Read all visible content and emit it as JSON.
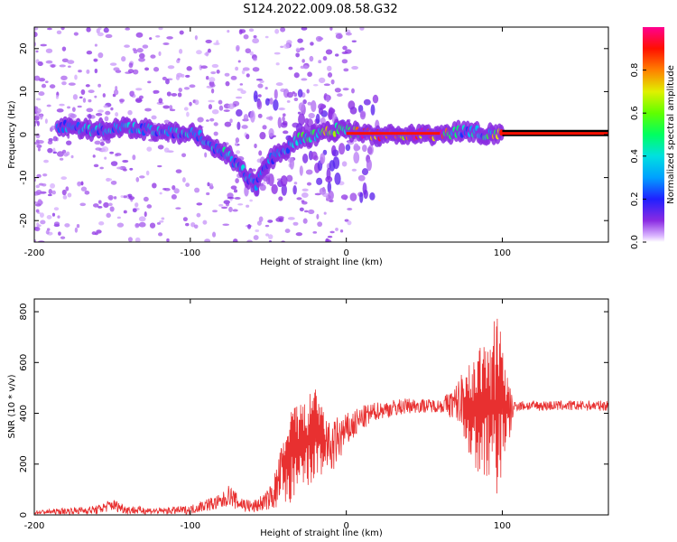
{
  "figure": {
    "title": "S124.2022.009.08.58.G32"
  },
  "chart_data": [
    {
      "type": "heatmap",
      "title": "",
      "xlabel": "Height of straight line (km)",
      "ylabel": "Frequency (Hz)",
      "xlim": [
        -200,
        168
      ],
      "ylim": [
        -25,
        25
      ],
      "x_ticks": [
        -200,
        -100,
        0,
        100
      ],
      "y_ticks": [
        -20,
        -10,
        0,
        10,
        20
      ],
      "colorbar": {
        "label": "Normalized spectral amplitude",
        "range": [
          0,
          1
        ],
        "ticks": [
          0.0,
          0.2,
          0.4,
          0.6,
          0.8
        ],
        "colormap": [
          "#ffffff",
          "#9b30ff",
          "#3030ff",
          "#00c8ff",
          "#00ff80",
          "#80ff00",
          "#ffd000",
          "#ff3000",
          "#ff0080"
        ]
      },
      "signal_track": {
        "x": [
          -180,
          -160,
          -140,
          -120,
          -105,
          -95,
          -85,
          -75,
          -65,
          -58,
          -50,
          -40,
          -30,
          -20,
          -10,
          -5,
          0,
          5,
          20,
          60,
          70,
          80,
          90,
          100,
          168
        ],
        "freq": [
          2,
          1,
          1.5,
          1,
          0.5,
          0,
          -3,
          -5,
          -9,
          -12,
          -6,
          -4,
          -1,
          0,
          0.5,
          1.5,
          1.5,
          0.5,
          0,
          0,
          0.5,
          1,
          0,
          0,
          0
        ],
        "amplitude": [
          0.3,
          0.3,
          0.3,
          0.3,
          0.3,
          0.35,
          0.35,
          0.35,
          0.3,
          0.25,
          0.25,
          0.3,
          0.4,
          0.5,
          0.55,
          0.5,
          0.45,
          0.75,
          0.85,
          0.9,
          0.35,
          0.35,
          0.35,
          0.85,
          0.9
        ]
      }
    },
    {
      "type": "line",
      "title": "",
      "xlabel": "Height of straight line (km)",
      "ylabel": "SNR (10 * v/v)",
      "xlim": [
        -200,
        168
      ],
      "ylim": [
        0,
        850
      ],
      "x_ticks": [
        -200,
        -100,
        0,
        100
      ],
      "y_ticks": [
        0,
        200,
        400,
        600,
        800
      ],
      "series": [
        {
          "color": "#e83030",
          "x": [
            -200,
            -180,
            -160,
            -150,
            -140,
            -120,
            -100,
            -90,
            -80,
            -75,
            -70,
            -60,
            -50,
            -45,
            -40,
            -35,
            -30,
            -25,
            -20,
            -15,
            -10,
            -5,
            0,
            10,
            20,
            30,
            40,
            60,
            70,
            75,
            80,
            85,
            90,
            95,
            98,
            100,
            105,
            108,
            110,
            130,
            150,
            168
          ],
          "y": [
            10,
            15,
            20,
            40,
            20,
            15,
            20,
            40,
            50,
            80,
            50,
            30,
            60,
            100,
            200,
            330,
            280,
            300,
            380,
            320,
            250,
            300,
            330,
            380,
            410,
            420,
            430,
            430,
            440,
            460,
            440,
            470,
            450,
            440,
            450,
            420,
            400,
            430,
            430,
            430,
            430,
            430
          ],
          "envelope_low": [
            5,
            5,
            5,
            10,
            5,
            5,
            5,
            10,
            15,
            20,
            10,
            10,
            20,
            30,
            40,
            40,
            60,
            80,
            120,
            150,
            180,
            220,
            280,
            340,
            380,
            390,
            400,
            400,
            380,
            300,
            200,
            150,
            120,
            80,
            60,
            200,
            300,
            410,
            410,
            410,
            410,
            410
          ],
          "envelope_high": [
            20,
            30,
            40,
            60,
            40,
            30,
            40,
            60,
            80,
            100,
            80,
            60,
            100,
            200,
            300,
            420,
            440,
            470,
            500,
            420,
            380,
            420,
            420,
            440,
            450,
            460,
            460,
            450,
            520,
            560,
            600,
            650,
            700,
            780,
            850,
            700,
            500,
            450,
            450,
            450,
            450,
            450
          ]
        }
      ]
    }
  ]
}
